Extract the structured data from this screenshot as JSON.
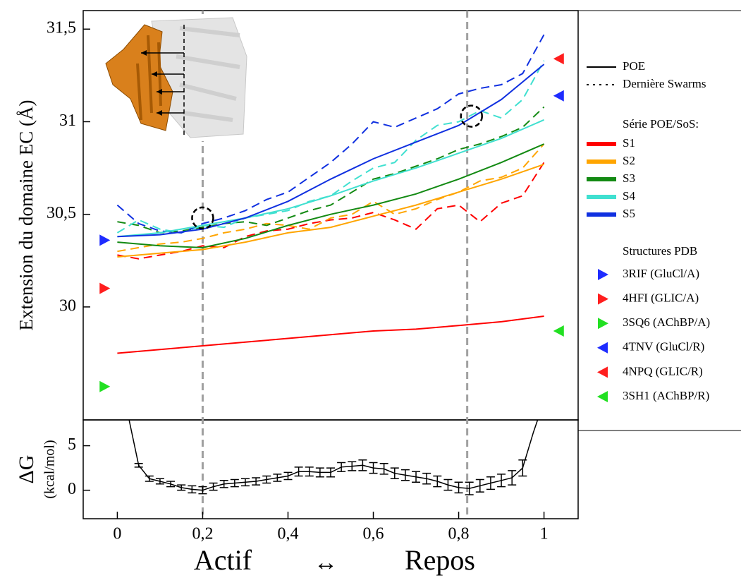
{
  "chart_data": [
    {
      "type": "line",
      "y_label": "Extension du domaine EC (Å)",
      "xlim": [
        -0.08,
        1.08
      ],
      "ylim": [
        29.39,
        31.6
      ],
      "yticks": [
        30,
        {
          "value": 30.5,
          "label": "30,5"
        },
        31,
        {
          "value": 31.5,
          "label": "31,5"
        }
      ],
      "style_legend": [
        {
          "name": "POE",
          "style": "solid"
        },
        {
          "name": "Dernière Swarms",
          "style": "dotted"
        }
      ],
      "series_title": "Série POE/SoS:",
      "x": [
        0,
        0.1,
        0.2,
        0.3,
        0.4,
        0.5,
        0.6,
        0.7,
        0.8,
        0.9,
        1
      ],
      "swarm_x": [
        0,
        0.05,
        0.1,
        0.15,
        0.2,
        0.25,
        0.3,
        0.35,
        0.4,
        0.45,
        0.5,
        0.55,
        0.6,
        0.65,
        0.7,
        0.75,
        0.8,
        0.85,
        0.9,
        0.95,
        1
      ],
      "series": [
        {
          "name": "S1",
          "color": "#ff0000",
          "values": [
            29.75,
            29.77,
            29.79,
            29.81,
            29.83,
            29.85,
            29.87,
            29.88,
            29.9,
            29.92,
            29.95
          ],
          "swarm_values": [
            30.28,
            30.26,
            30.28,
            30.3,
            30.33,
            30.32,
            30.38,
            30.41,
            30.42,
            30.45,
            30.47,
            30.48,
            30.51,
            30.47,
            30.42,
            30.53,
            30.55,
            30.46,
            30.56,
            30.6,
            30.78
          ]
        },
        {
          "name": "S2",
          "color": "#ffa500",
          "values": [
            30.27,
            30.29,
            30.31,
            30.35,
            30.4,
            30.43,
            30.49,
            30.55,
            30.62,
            30.69,
            30.77
          ],
          "swarm_values": [
            30.3,
            30.32,
            30.34,
            30.35,
            30.37,
            30.4,
            30.42,
            30.45,
            30.44,
            30.42,
            30.48,
            30.5,
            30.57,
            30.5,
            30.53,
            30.58,
            30.62,
            30.68,
            30.7,
            30.75,
            30.88
          ]
        },
        {
          "name": "S3",
          "color": "#138a13",
          "values": [
            30.35,
            30.33,
            30.32,
            30.37,
            30.44,
            30.5,
            30.55,
            30.61,
            30.69,
            30.78,
            30.88
          ],
          "swarm_values": [
            30.46,
            30.44,
            30.4,
            30.41,
            30.43,
            30.45,
            30.46,
            30.44,
            30.48,
            30.52,
            30.55,
            30.62,
            30.69,
            30.72,
            30.76,
            30.8,
            30.85,
            30.88,
            30.92,
            30.97,
            31.08
          ]
        },
        {
          "name": "S4",
          "color": "#40e0d0",
          "values": [
            30.38,
            30.4,
            30.44,
            30.48,
            30.53,
            30.6,
            30.68,
            30.75,
            30.83,
            30.91,
            31.01
          ],
          "swarm_values": [
            30.4,
            30.47,
            30.42,
            30.4,
            30.44,
            30.43,
            30.48,
            30.5,
            30.52,
            30.57,
            30.6,
            30.68,
            30.75,
            30.78,
            30.9,
            30.98,
            31,
            31.06,
            31.02,
            31.12,
            31.33
          ]
        },
        {
          "name": "S5",
          "color": "#1030e0",
          "values": [
            30.38,
            30.39,
            30.42,
            30.48,
            30.57,
            30.69,
            30.8,
            30.89,
            30.98,
            31.12,
            31.31
          ],
          "swarm_values": [
            30.55,
            30.45,
            30.41,
            30.4,
            30.45,
            30.48,
            30.52,
            30.58,
            30.62,
            30.7,
            30.78,
            30.88,
            31,
            30.97,
            31.02,
            31.07,
            31.15,
            31.18,
            31.2,
            31.26,
            31.47
          ]
        }
      ],
      "structures_title": "Structures PDB",
      "structures": [
        {
          "name": "3RIF (GluCl/A)",
          "color": "#1e2cff",
          "marker": "right",
          "x": -0.03,
          "y": 30.36
        },
        {
          "name": "4HFI (GLIC/A)",
          "color": "#ff1e1e",
          "marker": "right",
          "x": -0.03,
          "y": 30.1
        },
        {
          "name": "3SQ6 (AChBP/A)",
          "color": "#22e022",
          "marker": "right",
          "x": -0.03,
          "y": 29.57
        },
        {
          "name": "4TNV (GluCl/R)",
          "color": "#1e2cff",
          "marker": "left",
          "x": 1.035,
          "y": 31.14
        },
        {
          "name": "4NPQ (GLIC/R)",
          "color": "#ff1e1e",
          "marker": "left",
          "x": 1.035,
          "y": 31.34
        },
        {
          "name": "3SH1 (AChBP/R)",
          "color": "#22e022",
          "marker": "left",
          "x": 1.035,
          "y": 29.87
        }
      ],
      "vlines": [
        0.2,
        0.82
      ],
      "circles": [
        {
          "x": 0.2,
          "y": 30.48
        },
        {
          "x": 0.83,
          "y": 31.03
        }
      ]
    },
    {
      "type": "errorline",
      "y_label": "ΔG",
      "y_unit": "(kcal/mol)",
      "x_label_left": "Actif",
      "x_label_mid": "↔",
      "x_label_right": "Repos",
      "xlim": [
        -0.08,
        1.08
      ],
      "ylim": [
        -3.2,
        7.9
      ],
      "yticks": [
        0,
        5
      ],
      "xticks": [
        0,
        {
          "value": 0.2,
          "label": "0,2"
        },
        {
          "value": 0.4,
          "label": "0,4"
        },
        {
          "value": 0.6,
          "label": "0,6"
        },
        {
          "value": 0.8,
          "label": "0,8"
        },
        1
      ],
      "color": "#000000",
      "x": [
        0.025,
        0.05,
        0.075,
        0.1,
        0.125,
        0.15,
        0.175,
        0.2,
        0.225,
        0.25,
        0.275,
        0.3,
        0.325,
        0.35,
        0.375,
        0.4,
        0.425,
        0.45,
        0.475,
        0.5,
        0.525,
        0.55,
        0.575,
        0.6,
        0.625,
        0.65,
        0.675,
        0.7,
        0.725,
        0.75,
        0.775,
        0.8,
        0.825,
        0.85,
        0.875,
        0.9,
        0.925,
        0.95,
        0.975,
        1
      ],
      "values": [
        8.5,
        2.8,
        1.3,
        1.0,
        0.7,
        0.3,
        0.1,
        0.0,
        0.4,
        0.7,
        0.8,
        0.9,
        1.0,
        1.2,
        1.4,
        1.6,
        2.1,
        2.1,
        2.0,
        2.0,
        2.6,
        2.7,
        2.8,
        2.5,
        2.4,
        1.9,
        1.7,
        1.5,
        1.3,
        1.0,
        0.6,
        0.3,
        0.2,
        0.5,
        0.8,
        1.1,
        1.4,
        2.5,
        6.5,
        10
      ],
      "errors": [
        null,
        0.2,
        0.3,
        0.3,
        0.3,
        0.3,
        0.4,
        0.4,
        0.4,
        0.4,
        0.4,
        0.4,
        0.4,
        0.4,
        0.4,
        0.4,
        0.5,
        0.5,
        0.5,
        0.5,
        0.5,
        0.5,
        0.6,
        0.6,
        0.6,
        0.6,
        0.6,
        0.6,
        0.6,
        0.6,
        0.6,
        0.6,
        0.7,
        0.7,
        0.7,
        0.7,
        0.8,
        0.9,
        null,
        null
      ]
    }
  ]
}
